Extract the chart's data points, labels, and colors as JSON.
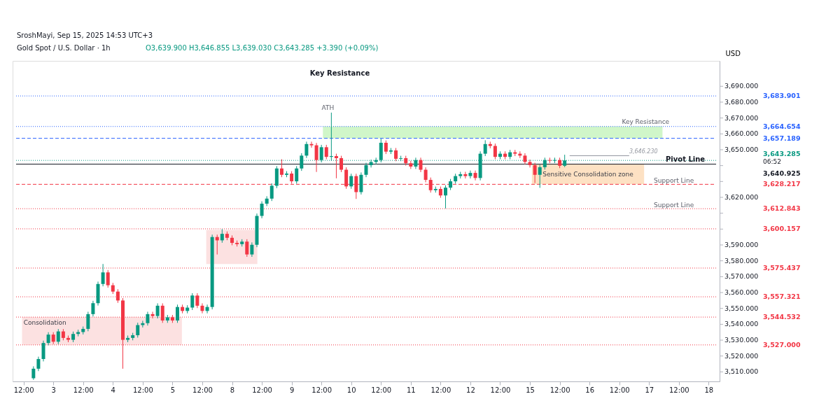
{
  "chart_data": {
    "type": "candlestick",
    "title": "Gold Spot / U.S. Dollar · 1h",
    "subtitle": "O3,639.900 H3,646.855 L3,639.030 C3,643.285 +3.390 (+0.09%)",
    "ylabel": "USD",
    "annotations": [
      "SroshMayi, Sep 15, 2025 14:53 UTC+3",
      "Key Resistance",
      "ATH",
      "Key Resistance",
      "Pivot Line",
      "Support Line",
      "Support Line",
      "06:52"
    ],
    "categories": [
      "12:00",
      null,
      null,
      null,
      null,
      null,
      "3",
      null,
      null,
      null,
      null,
      null,
      "12:00",
      null,
      null,
      null,
      null,
      null,
      "4",
      null,
      null,
      null,
      null,
      null,
      "12:00",
      null,
      null,
      null,
      null,
      null,
      "5",
      null,
      null,
      null,
      null,
      null,
      "12:00",
      null,
      null,
      null,
      null,
      null,
      "8",
      null,
      null,
      null,
      null,
      null,
      "12:00",
      null,
      null,
      null,
      null,
      null,
      "9",
      null,
      null,
      null,
      null,
      null,
      "12:00",
      null,
      null,
      null,
      null,
      null,
      "10",
      null,
      null,
      null,
      null,
      null,
      "12:00",
      null,
      null,
      null,
      null,
      null,
      "11",
      null,
      null,
      null,
      null,
      null,
      "12:00",
      null,
      null,
      null,
      null,
      null,
      "12",
      null,
      null,
      null,
      null,
      null,
      "12:00",
      null,
      null,
      null,
      null,
      null,
      "15",
      null,
      null,
      null,
      null,
      null,
      "12:00",
      null,
      null,
      null,
      null,
      null,
      "16",
      null,
      null,
      null,
      null,
      null,
      "12:00",
      null,
      null,
      null,
      null,
      null,
      "17",
      null,
      null,
      null,
      null,
      null,
      "12:00",
      null,
      null,
      null,
      null,
      null,
      "18",
      null,
      null
    ],
    "ohlc": [
      null,
      null,
      [
        3506.0,
        3513.5,
        3505.0,
        3512.0
      ],
      [
        3512.0,
        3519.6,
        3510.5,
        3518.1
      ],
      [
        3518.1,
        3529.7,
        3516.6,
        3528.2
      ],
      [
        3528.2,
        3535.0,
        3526.7,
        3533.5
      ],
      [
        3533.5,
        3535.0,
        3527.5,
        3529.0
      ],
      [
        3529.0,
        3537.0,
        3527.5,
        3535.5
      ],
      [
        3535.5,
        3537.0,
        3529.9,
        3531.4
      ],
      [
        3531.4,
        3532.9,
        3528.7,
        3530.2
      ],
      [
        3530.2,
        3535.4,
        3528.7,
        3533.9
      ],
      [
        3533.9,
        3536.6,
        3532.4,
        3535.1
      ],
      [
        3535.1,
        3538.6,
        3533.6,
        3537.1
      ],
      [
        3537.1,
        3547.9,
        3535.6,
        3546.4
      ],
      [
        3546.4,
        3554.8,
        3544.9,
        3553.3
      ],
      [
        3553.3,
        3566.9,
        3551.8,
        3565.4
      ],
      [
        3565.4,
        3578.0,
        3563.9,
        3572.7
      ],
      [
        3572.7,
        3574.2,
        3563.1,
        3564.6
      ],
      [
        3564.6,
        3566.1,
        3559.1,
        3560.6
      ],
      [
        3560.6,
        3562.1,
        3553.5,
        3555.0
      ],
      [
        3555.0,
        3556.5,
        3512.0,
        3530.2
      ],
      [
        3530.2,
        3532.9,
        3528.7,
        3531.4
      ],
      [
        3531.4,
        3534.6,
        3529.9,
        3533.1
      ],
      [
        3533.1,
        3541.0,
        3531.6,
        3539.5
      ],
      [
        3539.5,
        3542.2,
        3538.0,
        3540.7
      ],
      [
        3540.7,
        3547.9,
        3539.2,
        3546.4
      ],
      [
        3546.4,
        3547.9,
        3543.7,
        3545.2
      ],
      [
        3545.2,
        3553.2,
        3543.7,
        3551.7
      ],
      [
        3551.7,
        3553.2,
        3540.9,
        3542.4
      ],
      [
        3542.4,
        3545.9,
        3540.9,
        3544.4
      ],
      [
        3544.4,
        3545.9,
        3540.9,
        3542.4
      ],
      [
        3542.4,
        3552.4,
        3540.9,
        3550.9
      ],
      [
        3550.9,
        3552.4,
        3546.9,
        3548.4
      ],
      [
        3548.4,
        3552.0,
        3546.9,
        3550.5
      ],
      [
        3550.5,
        3559.6,
        3549.0,
        3558.1
      ],
      [
        3558.1,
        3559.6,
        3550.2,
        3551.7
      ],
      [
        3551.7,
        3553.2,
        3546.9,
        3548.4
      ],
      [
        3548.4,
        3552.4,
        3546.9,
        3550.9
      ],
      [
        3550.9,
        3596.5,
        3549.4,
        3595.0
      ],
      [
        3595.0,
        3596.5,
        3584.0,
        3592.9
      ],
      [
        3592.9,
        3600.0,
        3591.4,
        3597.0
      ],
      [
        3597.0,
        3598.5,
        3593.0,
        3594.5
      ],
      [
        3594.5,
        3596.0,
        3589.8,
        3591.3
      ],
      [
        3591.3,
        3592.8,
        3589.0,
        3590.5
      ],
      [
        3590.5,
        3593.6,
        3589.0,
        3592.1
      ],
      [
        3592.1,
        3593.6,
        3582.5,
        3584.0
      ],
      [
        3584.0,
        3591.6,
        3582.5,
        3590.1
      ],
      [
        3590.1,
        3609.8,
        3588.6,
        3608.3
      ],
      [
        3608.3,
        3617.5,
        3606.8,
        3616.0
      ],
      [
        3616.0,
        3620.7,
        3614.5,
        3619.2
      ],
      [
        3619.2,
        3628.8,
        3617.7,
        3627.3
      ],
      [
        3627.3,
        3639.7,
        3625.8,
        3638.2
      ],
      [
        3638.2,
        3644.0,
        3632.7,
        3634.2
      ],
      [
        3634.2,
        3636.5,
        3632.7,
        3635.0
      ],
      [
        3635.0,
        3636.5,
        3628.6,
        3630.1
      ],
      [
        3630.1,
        3639.7,
        3628.6,
        3638.2
      ],
      [
        3638.2,
        3647.8,
        3636.7,
        3646.3
      ],
      [
        3646.3,
        3655.1,
        3644.8,
        3653.6
      ],
      [
        3653.6,
        3655.1,
        3651.3,
        3652.8
      ],
      [
        3652.8,
        3654.3,
        3636.0,
        3643.5
      ],
      [
        3643.5,
        3653.1,
        3642.0,
        3651.6
      ],
      [
        3651.6,
        3653.1,
        3644.0,
        3645.5
      ],
      [
        3645.5,
        3673.4,
        3643.0,
        3646.0
      ],
      [
        3646.0,
        3647.5,
        3632.0,
        3644.7
      ],
      [
        3644.7,
        3646.2,
        3635.9,
        3637.4
      ],
      [
        3637.4,
        3638.9,
        3625.4,
        3626.9
      ],
      [
        3626.9,
        3634.9,
        3625.4,
        3633.4
      ],
      [
        3633.4,
        3634.9,
        3619.0,
        3623.3
      ],
      [
        3623.3,
        3635.7,
        3621.8,
        3634.2
      ],
      [
        3634.2,
        3641.8,
        3632.7,
        3640.3
      ],
      [
        3640.3,
        3643.8,
        3638.8,
        3642.3
      ],
      [
        3642.3,
        3645.0,
        3640.8,
        3643.5
      ],
      [
        3643.5,
        3657.0,
        3642.0,
        3654.4
      ],
      [
        3654.4,
        3655.9,
        3647.3,
        3648.8
      ],
      [
        3648.8,
        3651.1,
        3647.3,
        3649.6
      ],
      [
        3649.6,
        3651.1,
        3642.8,
        3644.3
      ],
      [
        3644.3,
        3646.2,
        3642.8,
        3644.7
      ],
      [
        3644.7,
        3646.2,
        3640.0,
        3641.5
      ],
      [
        3641.5,
        3643.0,
        3637.9,
        3639.4
      ],
      [
        3639.4,
        3645.0,
        3637.9,
        3643.5
      ],
      [
        3643.5,
        3645.0,
        3635.9,
        3637.4
      ],
      [
        3637.4,
        3638.9,
        3629.5,
        3631.0
      ],
      [
        3631.0,
        3632.5,
        3623.0,
        3624.5
      ],
      [
        3624.5,
        3626.8,
        3623.0,
        3625.3
      ],
      [
        3625.3,
        3626.8,
        3619.7,
        3621.2
      ],
      [
        3621.2,
        3627.6,
        3613.0,
        3626.1
      ],
      [
        3626.1,
        3631.6,
        3624.6,
        3630.1
      ],
      [
        3630.1,
        3634.9,
        3628.6,
        3633.4
      ],
      [
        3633.4,
        3636.1,
        3631.9,
        3634.6
      ],
      [
        3634.6,
        3636.1,
        3631.9,
        3633.4
      ],
      [
        3633.4,
        3636.9,
        3631.9,
        3635.4
      ],
      [
        3635.4,
        3636.9,
        3630.7,
        3632.2
      ],
      [
        3632.2,
        3649.0,
        3630.7,
        3647.5
      ],
      [
        3647.5,
        3656.0,
        3646.0,
        3653.6
      ],
      [
        3653.6,
        3655.1,
        3650.9,
        3652.4
      ],
      [
        3652.4,
        3653.9,
        3644.0,
        3645.5
      ],
      [
        3645.5,
        3649.0,
        3644.0,
        3647.5
      ],
      [
        3647.5,
        3649.0,
        3644.0,
        3645.5
      ],
      [
        3645.5,
        3649.9,
        3644.0,
        3648.4
      ],
      [
        3648.4,
        3649.9,
        3646.0,
        3647.5
      ],
      [
        3647.5,
        3649.0,
        3644.8,
        3646.3
      ],
      [
        3646.3,
        3647.8,
        3640.8,
        3642.3
      ],
      [
        3642.3,
        3643.8,
        3638.8,
        3640.3
      ],
      [
        3640.3,
        3641.8,
        3629.0,
        3634.2
      ],
      [
        3634.2,
        3640.5,
        3626.0,
        3639.0
      ],
      [
        3639.0,
        3645.0,
        3637.5,
        3643.5
      ],
      [
        3643.5,
        3645.0,
        3641.6,
        3643.1
      ],
      [
        3643.1,
        3645.0,
        3641.6,
        3643.5
      ],
      [
        3643.5,
        3645.0,
        3638.4,
        3639.9
      ],
      [
        3639.9,
        3646.855,
        3639.03,
        3643.285
      ],
      null,
      null,
      null,
      null,
      null,
      null,
      null,
      null,
      null,
      null,
      null,
      null,
      null,
      null,
      null,
      null,
      null,
      null,
      null,
      null,
      null,
      null,
      null,
      null,
      null,
      null,
      null,
      null,
      null,
      null,
      null
    ],
    "colors": [
      null,
      null,
      "#089981",
      "#089981",
      "#089981",
      "#089981",
      "#f23645",
      "#089981",
      "#f23645",
      "#f23645",
      "#089981",
      "#089981",
      "#089981",
      "#089981",
      "#089981",
      "#089981",
      "#089981",
      "#f23645",
      "#f23645",
      "#f23645",
      "#f23645",
      "#089981",
      "#089981",
      "#089981",
      "#089981",
      "#089981",
      "#f23645",
      "#089981",
      "#f23645",
      "#089981",
      "#f23645",
      "#089981",
      "#f23645",
      "#089981",
      "#089981",
      "#f23645",
      "#f23645",
      "#089981",
      "#089981",
      "#f23645",
      "#089981",
      "#f23645",
      "#f23645",
      "#f23645",
      "#089981",
      "#f23645",
      "#089981",
      "#089981",
      "#089981",
      "#089981",
      "#089981",
      "#089981",
      "#f23645",
      "#089981",
      "#f23645",
      "#089981",
      "#089981",
      "#089981",
      "#f23645",
      "#f23645",
      "#089981",
      "#f23645",
      "#089981",
      "#f23645",
      "#f23645",
      "#f23645",
      "#089981",
      "#f23645",
      "#089981",
      "#089981",
      "#089981",
      "#089981",
      "#089981",
      "#f23645",
      "#089981",
      "#f23645",
      "#089981",
      "#f23645",
      "#f23645",
      "#089981",
      "#f23645",
      "#f23645",
      "#f23645",
      "#089981",
      "#f23645",
      "#089981",
      "#089981",
      "#089981",
      "#089981",
      "#f23645",
      "#089981",
      "#f23645",
      "#089981",
      "#089981",
      "#f23645",
      "#f23645",
      "#089981",
      "#f23645",
      "#089981",
      "#f23645",
      "#f23645",
      "#f23645",
      "#f23645",
      "#f23645",
      "#089981",
      "#089981",
      "#f23645",
      "#089981",
      "#f23645",
      "#089981",
      null,
      null,
      null,
      null,
      null,
      null,
      null,
      null,
      null,
      null,
      null,
      null,
      null,
      null,
      null,
      null,
      null,
      null,
      null,
      null,
      null,
      null,
      null,
      null,
      null,
      null,
      null,
      null,
      null,
      null,
      null
    ],
    "ylim": [
      3504,
      3706
    ],
    "yticks": [
      {
        "value": 3510,
        "label": "3,510.000"
      },
      {
        "value": 3520,
        "label": "3,520.000"
      },
      {
        "value": 3530,
        "label": "3,530.000"
      },
      {
        "value": 3540,
        "label": "3,540.000"
      },
      {
        "value": 3550,
        "label": "3,550.000"
      },
      {
        "value": 3560,
        "label": "3,560.000"
      },
      {
        "value": 3570,
        "label": "3,570.000"
      },
      {
        "value": 3580,
        "label": "3,580.000"
      },
      {
        "value": 3590,
        "label": "3,590.000"
      },
      {
        "value": 3600,
        "label": null
      },
      {
        "value": 3610,
        "label": null
      },
      {
        "value": 3620,
        "label": "3,620.000"
      },
      {
        "value": 3630,
        "label": null
      },
      {
        "value": 3640,
        "label": null
      },
      {
        "value": 3650,
        "label": "3,650.000"
      },
      {
        "value": 3660,
        "label": "3,660.000"
      },
      {
        "value": 3670,
        "label": "3,670.000"
      },
      {
        "value": 3680,
        "label": "3,680.000"
      },
      {
        "value": 3690,
        "label": "3,690.000"
      }
    ],
    "grid": false,
    "ref_lines": [
      {
        "axis": "y",
        "value": 3683.901,
        "label": "3,683.901",
        "color": "#2962ff",
        "line_style": "dotted"
      },
      {
        "axis": "y",
        "value": 3664.654,
        "label": "3,664.654",
        "color": "#2962ff",
        "line_style": "dotted"
      },
      {
        "axis": "y",
        "value": 3657.189,
        "label": "3,657.189",
        "color": "#2962ff",
        "line_style": "dashed"
      },
      {
        "axis": "y",
        "value": 3646.23,
        "label": "3,646.230",
        "color": "#9598a1",
        "line_style": "solid"
      },
      {
        "axis": "y",
        "value": 3643.285,
        "label": "3,643.285",
        "color": "#089981",
        "line_style": "dotted"
      },
      {
        "axis": "y",
        "value": 3640.925,
        "label": "3,640.925",
        "color": "#131722",
        "line_style": "solid"
      },
      {
        "axis": "y",
        "value": 3628.217,
        "label": "3,628.217",
        "color": "#f23645",
        "line_style": "dashed"
      },
      {
        "axis": "y",
        "value": 3612.843,
        "label": "3,612.843",
        "color": "#f23645",
        "line_style": "dotted"
      },
      {
        "axis": "y",
        "value": 3600.157,
        "label": "3,600.157",
        "color": "#f23645",
        "line_style": "dotted"
      },
      {
        "axis": "y",
        "value": 3575.437,
        "label": "3,575.437",
        "color": "#f23645",
        "line_style": "dotted"
      },
      {
        "axis": "y",
        "value": 3557.321,
        "label": "3,557.321",
        "color": "#f23645",
        "line_style": "dotted"
      },
      {
        "axis": "y",
        "value": 3544.532,
        "label": "3,544.532",
        "color": "#f23645",
        "line_style": "dotted"
      },
      {
        "axis": "y",
        "value": 3527.0,
        "label": "3,527.000",
        "color": "#f23645",
        "line_style": "dotted"
      }
    ],
    "bands": [
      {
        "axis": "y",
        "from": 3657.189,
        "to": 3664.654,
        "label": null,
        "color": "#c8f5c0"
      },
      {
        "axis": "y",
        "from": 3628.217,
        "to": 3640.925,
        "label": "Sensitive Consolidation zone",
        "color": "#fddcb8"
      },
      {
        "axis": "y",
        "from": 3527.0,
        "to": 3544.532,
        "label": "Consolidation",
        "color": "#fbdcdc"
      },
      {
        "axis": "y",
        "from": 3578.0,
        "to": 3599.5,
        "label": null,
        "color": "#fbdcdc"
      }
    ]
  }
}
